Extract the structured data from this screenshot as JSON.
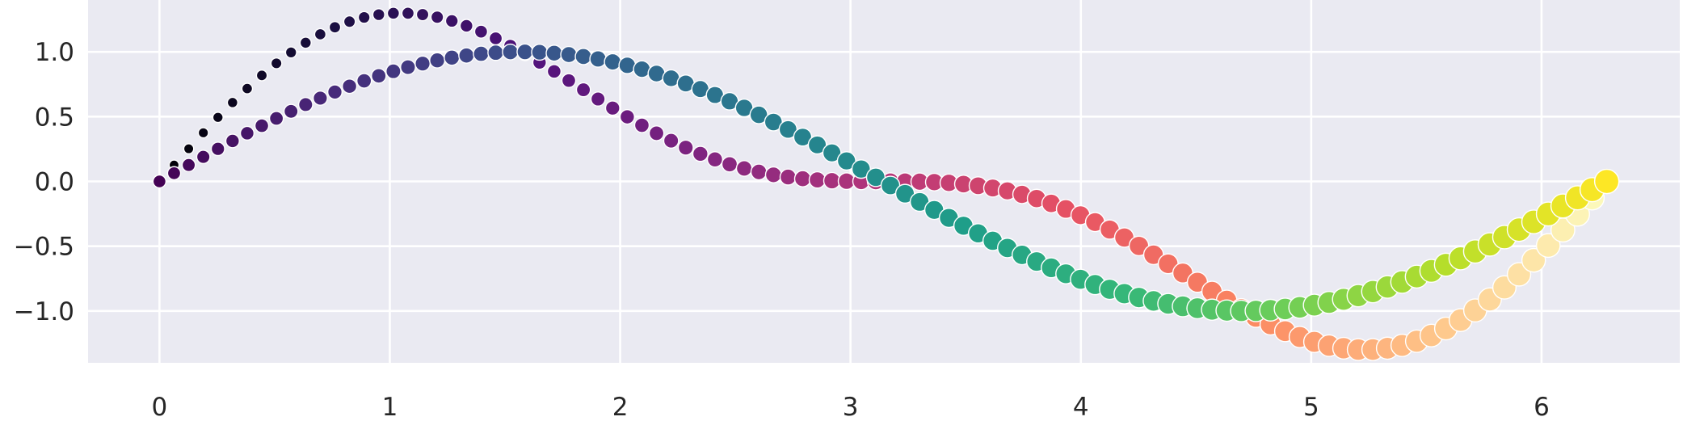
{
  "chart_data": {
    "type": "scatter",
    "title": "",
    "xlabel": "",
    "ylabel": "",
    "xlim": [
      -0.31,
      6.6
    ],
    "ylim": [
      -1.4,
      1.4
    ],
    "grid": true,
    "background": "#eaeaf2",
    "x_ticks": [
      0,
      1,
      2,
      3,
      4,
      5,
      6
    ],
    "x_tick_labels": [
      "0",
      "1",
      "2",
      "3",
      "4",
      "5",
      "6"
    ],
    "y_ticks": [
      -1.0,
      -0.5,
      0.0,
      0.5,
      1.0
    ],
    "y_tick_labels": [
      "−1.0",
      "−0.5",
      "0.0",
      "0.5",
      "1.0"
    ],
    "x_range": [
      0,
      6.283
    ],
    "points_per_series": 100,
    "series": [
      {
        "formula": "sin(x) + 0.5·sin(2x)",
        "palette": "magma",
        "marker_size_range": [
          6,
          15
        ]
      },
      {
        "formula": "sin(x)",
        "palette": "viridis",
        "marker_size_range": [
          8,
          15
        ]
      }
    ],
    "palettes": {
      "magma": [
        "#000004",
        "#1c1044",
        "#4f127b",
        "#812581",
        "#b5367a",
        "#e55064",
        "#fb8761",
        "#fec287",
        "#fcfdbf"
      ],
      "viridis": [
        "#440154",
        "#482878",
        "#3e4989",
        "#31688e",
        "#26828e",
        "#1f9e89",
        "#35b779",
        "#6ece58",
        "#b5de2b",
        "#fde725"
      ]
    }
  }
}
